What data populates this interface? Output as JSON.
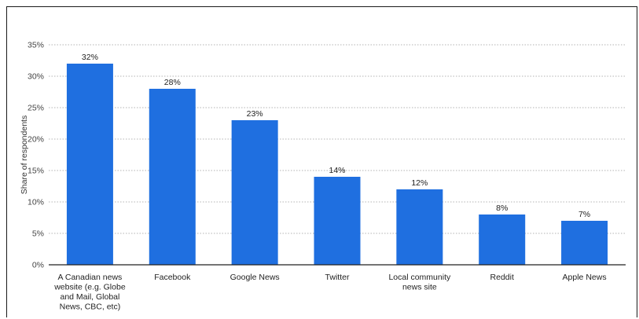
{
  "chart_data": {
    "type": "bar",
    "ylabel": "Share of respondents",
    "xlabel": "",
    "ylim": [
      0,
      35
    ],
    "yticks": [
      0,
      5,
      10,
      15,
      20,
      25,
      30,
      35
    ],
    "ytick_labels": [
      "0%",
      "5%",
      "10%",
      "15%",
      "20%",
      "25%",
      "30%",
      "35%"
    ],
    "grid": true,
    "categories": [
      [
        "A Canadian news",
        "website (e.g. Globe",
        "and Mail, Global",
        "News, CBC, etc)"
      ],
      [
        "Facebook"
      ],
      [
        "Google News"
      ],
      [
        "Twitter"
      ],
      [
        "Local community",
        "news site"
      ],
      [
        "Reddit"
      ],
      [
        "Apple News"
      ]
    ],
    "values": [
      32,
      28,
      23,
      14,
      12,
      8,
      7
    ],
    "data_labels": [
      "32%",
      "28%",
      "23%",
      "14%",
      "12%",
      "8%",
      "7%"
    ],
    "bar_color": "#1f6fe0",
    "grid_color": "#9a9a9a",
    "axis_color": "#222222"
  }
}
